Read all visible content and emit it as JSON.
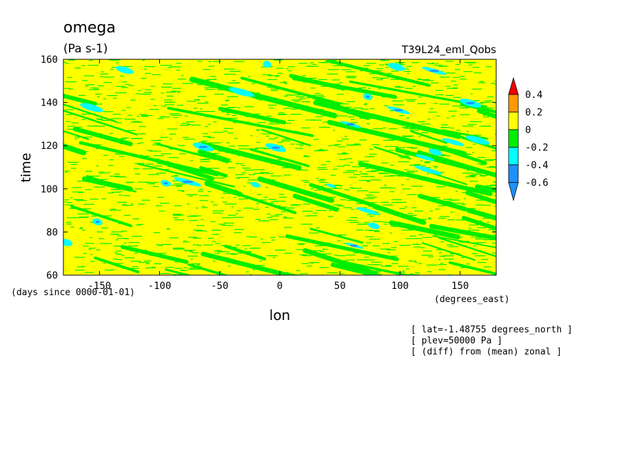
{
  "chart_data": {
    "type": "heatmap",
    "title": "omega",
    "units": "(Pa s-1)",
    "experiment": "T39L24_eml_Qobs",
    "xlabel": "lon",
    "ylabel": "time",
    "x_units": "(degrees_east)",
    "y_units": "(days since 0000-01-01)",
    "xlim": [
      -180,
      180
    ],
    "ylim": [
      60,
      160
    ],
    "x_ticks": [
      -150,
      -100,
      -50,
      0,
      50,
      100,
      150
    ],
    "y_ticks": [
      60,
      80,
      100,
      120,
      140,
      160
    ],
    "colorbar": {
      "levels": [
        -0.6,
        -0.4,
        -0.2,
        0,
        0.2,
        0.4
      ],
      "level_labels": [
        "-0.6",
        "-0.4",
        "-0.2",
        "0",
        "0.2",
        "0.4"
      ],
      "colors": [
        "#1e90ff",
        "#1e90ff",
        "#00ffff",
        "#00ee00",
        "#ffff00",
        "#ff9900",
        "#ee0000"
      ],
      "extend": "both"
    },
    "background_value_range": [
      0,
      0.2
    ],
    "features": [
      {
        "type": "westward-propagating negative omega streaks",
        "slope_deg_per_day": -5,
        "range": "-0.2 to 0"
      },
      {
        "type": "localized minima",
        "range": "-0.4 to -0.2"
      }
    ],
    "annotations": [
      "[ lat=-1.48755 degrees_north ]",
      "[ plev=50000 Pa ]",
      "[ (diff) from (mean) zonal ]"
    ]
  },
  "colors": {
    "yellow": "#ffff00",
    "green": "#00ee00",
    "cyan": "#00ffff",
    "blue": "#1e90ff",
    "orange": "#ff9900",
    "red": "#ee0000"
  }
}
